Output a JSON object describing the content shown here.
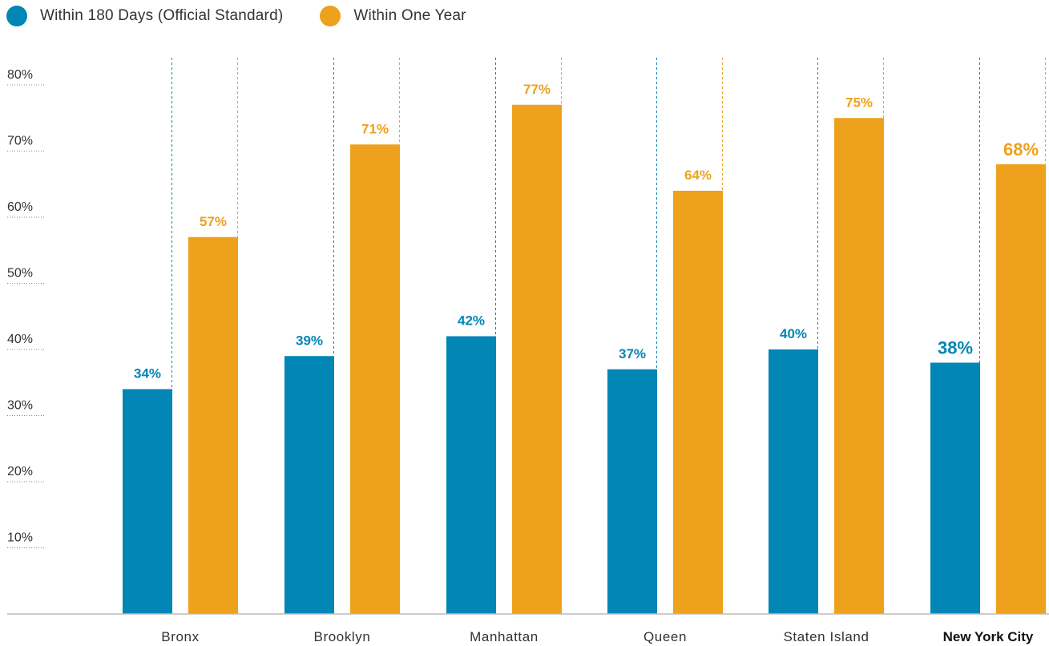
{
  "chart_data": {
    "type": "bar",
    "title": "",
    "xlabel": "",
    "ylabel": "",
    "ylim": [
      0,
      82
    ],
    "yticks": [
      10,
      20,
      30,
      40,
      50,
      60,
      70,
      80
    ],
    "ytick_labels": [
      "10%",
      "20%",
      "30%",
      "40%",
      "50%",
      "60%",
      "70%",
      "80%"
    ],
    "categories": [
      "Bronx",
      "Brooklyn",
      "Manhattan",
      "Queen",
      "Staten Island",
      "New York City"
    ],
    "highlight_category": "New York City",
    "series": [
      {
        "name": "Within 180 Days (Official Standard)",
        "color": "#0186b5",
        "values": [
          34,
          39,
          42,
          37,
          40,
          38
        ],
        "labels": [
          "34%",
          "39%",
          "42%",
          "37%",
          "40%",
          "38%"
        ]
      },
      {
        "name": "Within One Year",
        "color": "#eda11c",
        "values": [
          57,
          71,
          77,
          64,
          75,
          68
        ],
        "labels": [
          "57%",
          "71%",
          "77%",
          "64%",
          "75%",
          "68%"
        ]
      }
    ],
    "legend_position": "top-left",
    "grid": false
  }
}
